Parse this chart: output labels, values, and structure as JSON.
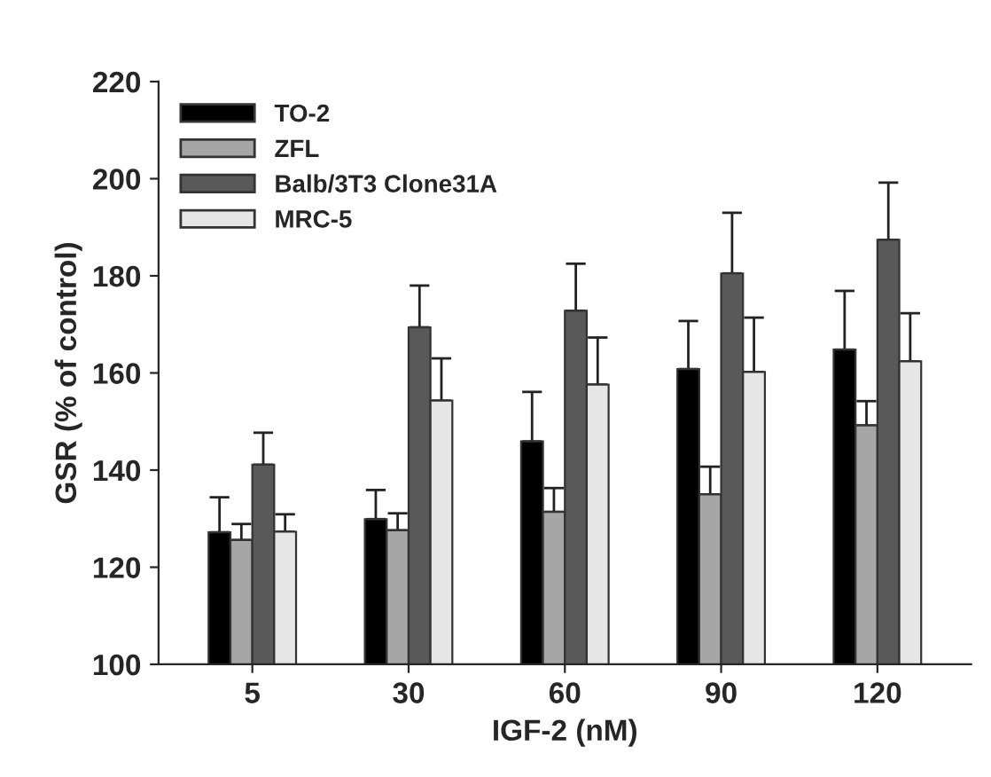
{
  "chart_data": {
    "type": "bar",
    "xlabel": "IGF-2 (nM)",
    "ylabel": "GSR (% of control)",
    "categories": [
      "5",
      "30",
      "60",
      "90",
      "120"
    ],
    "series": [
      {
        "name": "TO-2",
        "color": "#000000",
        "values": [
          127.2,
          129.9,
          145.9,
          160.8,
          164.8
        ],
        "errors": [
          [
            127.2,
            134.4
          ],
          [
            129.9,
            135.9
          ],
          [
            145.9,
            156.1
          ],
          [
            160.8,
            170.7
          ],
          [
            164.8,
            176.9
          ]
        ]
      },
      {
        "name": "ZFL",
        "color": "#a6a6a6",
        "values": [
          125.6,
          127.6,
          131.4,
          135.0,
          149.2
        ],
        "errors": [
          [
            125.6,
            128.9
          ],
          [
            127.6,
            131.1
          ],
          [
            131.4,
            136.3
          ],
          [
            135.0,
            140.7
          ],
          [
            149.2,
            154.2
          ]
        ]
      },
      {
        "name": "Balb/3T3 Clone31A",
        "color": "#595959",
        "values": [
          141.1,
          169.4,
          172.8,
          180.5,
          187.4
        ],
        "errors": [
          [
            141.1,
            147.7
          ],
          [
            169.4,
            178.0
          ],
          [
            172.8,
            182.5
          ],
          [
            180.5,
            193.0
          ],
          [
            187.4,
            199.2
          ]
        ]
      },
      {
        "name": "MRC-5",
        "color": "#e6e6e6",
        "values": [
          127.3,
          154.3,
          157.6,
          160.2,
          162.4
        ],
        "errors": [
          [
            127.3,
            130.9
          ],
          [
            154.3,
            163.0
          ],
          [
            157.6,
            167.3
          ],
          [
            160.2,
            171.4
          ],
          [
            162.4,
            172.3
          ]
        ]
      }
    ],
    "ylim": [
      100,
      220
    ],
    "yticks": [
      100,
      120,
      140,
      160,
      180,
      200,
      220
    ],
    "grid": false,
    "legend": "top left"
  }
}
